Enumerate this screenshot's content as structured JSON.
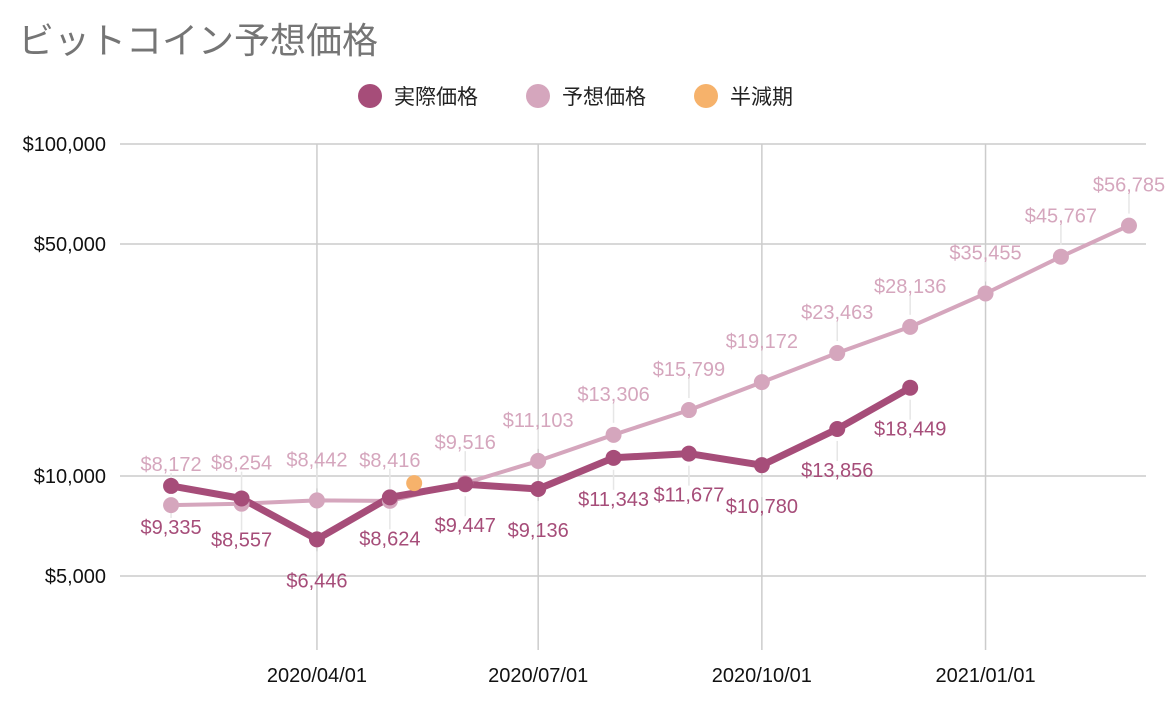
{
  "chart_data": {
    "type": "line",
    "title": "ビットコイン予想価格",
    "xlabel": "",
    "ylabel": "",
    "y_scale": "log",
    "ylim": [
      3500,
      100000
    ],
    "y_ticks": [
      {
        "value": 100000,
        "label": "$100,000"
      },
      {
        "value": 50000,
        "label": "$50,000"
      },
      {
        "value": 10000,
        "label": "$10,000"
      },
      {
        "value": 5000,
        "label": "$5,000"
      }
    ],
    "x_ticks": [
      {
        "date": "2020-04-01",
        "label": "2020/04/01"
      },
      {
        "date": "2020-07-01",
        "label": "2020/07/01"
      },
      {
        "date": "2020-10-01",
        "label": "2020/10/01"
      },
      {
        "date": "2021-01-01",
        "label": "2021/01/01"
      }
    ],
    "xlim": [
      "2020-01-11",
      "2021-03-08"
    ],
    "grid": true,
    "legend_position": "top-center",
    "legend": [
      {
        "name": "実際価格",
        "color": "#a64d79"
      },
      {
        "name": "予想価格",
        "color": "#d5a6bd"
      },
      {
        "name": "半減期",
        "color": "#f6b26b"
      }
    ],
    "series": [
      {
        "name": "予想価格",
        "color": "#d5a6bd",
        "points": [
          {
            "x": "2020-02-01",
            "y": 8172,
            "label": "$8,172"
          },
          {
            "x": "2020-03-01",
            "y": 8254,
            "label": "$8,254"
          },
          {
            "x": "2020-04-01",
            "y": 8442,
            "label": "$8,442"
          },
          {
            "x": "2020-05-01",
            "y": 8416,
            "label": "$8,416"
          },
          {
            "x": "2020-06-01",
            "y": 9516,
            "label": "$9,516"
          },
          {
            "x": "2020-07-01",
            "y": 11103,
            "label": "$11,103"
          },
          {
            "x": "2020-08-01",
            "y": 13306,
            "label": "$13,306"
          },
          {
            "x": "2020-09-01",
            "y": 15799,
            "label": "$15,799"
          },
          {
            "x": "2020-10-01",
            "y": 19172,
            "label": "$19,172"
          },
          {
            "x": "2020-11-01",
            "y": 23463,
            "label": "$23,463"
          },
          {
            "x": "2020-12-01",
            "y": 28136,
            "label": "$28,136"
          },
          {
            "x": "2021-01-01",
            "y": 35455,
            "label": "$35,455"
          },
          {
            "x": "2021-02-01",
            "y": 45767,
            "label": "$45,767"
          },
          {
            "x": "2021-03-01",
            "y": 56785,
            "label": "$56,785"
          }
        ]
      },
      {
        "name": "実際価格",
        "color": "#a64d79",
        "points": [
          {
            "x": "2020-02-01",
            "y": 9335,
            "label": "$9,335"
          },
          {
            "x": "2020-03-01",
            "y": 8557,
            "label": "$8,557"
          },
          {
            "x": "2020-04-01",
            "y": 6446,
            "label": "$6,446"
          },
          {
            "x": "2020-05-01",
            "y": 8624,
            "label": "$8,624"
          },
          {
            "x": "2020-06-01",
            "y": 9447,
            "label": "$9,447"
          },
          {
            "x": "2020-07-01",
            "y": 9136,
            "label": "$9,136"
          },
          {
            "x": "2020-08-01",
            "y": 11343,
            "label": "$11,343"
          },
          {
            "x": "2020-09-01",
            "y": 11677,
            "label": "$11,677"
          },
          {
            "x": "2020-10-01",
            "y": 10780,
            "label": "$10,780"
          },
          {
            "x": "2020-11-01",
            "y": 13856,
            "label": "$13,856"
          },
          {
            "x": "2020-12-01",
            "y": 18449,
            "label": "$18,449"
          }
        ]
      },
      {
        "name": "半減期",
        "color": "#f6b26b",
        "points": [
          {
            "x": "2020-05-11",
            "y": 9516
          }
        ]
      }
    ]
  }
}
